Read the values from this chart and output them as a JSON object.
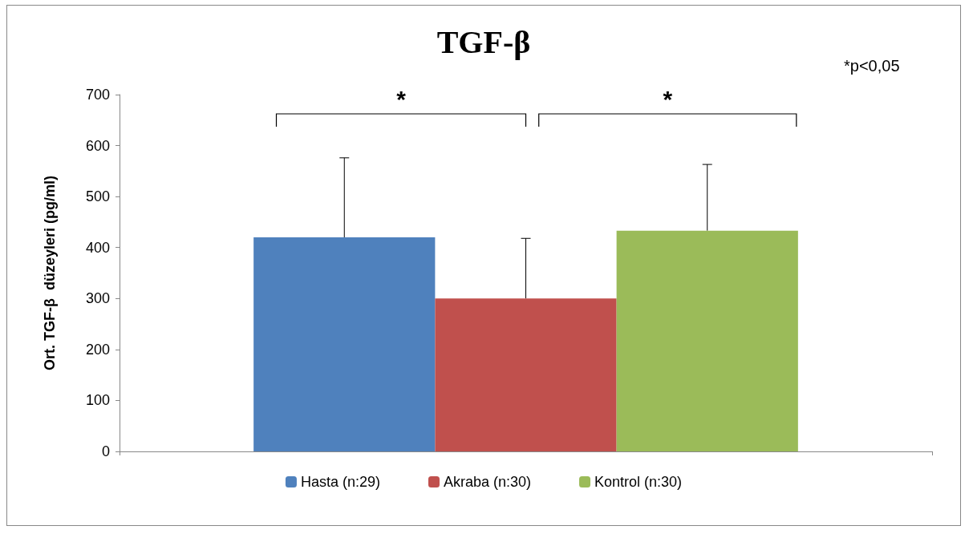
{
  "chart_data": {
    "type": "bar",
    "title": "TGF-β",
    "ylabel": "Ort. TGF-β  düzeyleri (pg/ml)",
    "categories": [
      null
    ],
    "series": [
      {
        "name": "Hasta (n:29)",
        "color": "#4f81bd",
        "values": [
          420
        ],
        "errors": [
          [
            420,
            576
          ]
        ]
      },
      {
        "name": "Akraba (n:30)",
        "color": "#c0504d",
        "values": [
          300
        ],
        "errors": [
          [
            300,
            418
          ]
        ]
      },
      {
        "name": "Kontrol (n:30)",
        "color": "#9bbb59",
        "values": [
          433
        ],
        "errors": [
          [
            433,
            563
          ]
        ]
      }
    ],
    "ylim": [
      0,
      700
    ],
    "yticks": [
      0,
      100,
      200,
      300,
      400,
      500,
      600,
      700
    ],
    "grid": false,
    "legend": "bottom",
    "annotations": [
      "*",
      "*",
      "*p<0,05"
    ]
  }
}
